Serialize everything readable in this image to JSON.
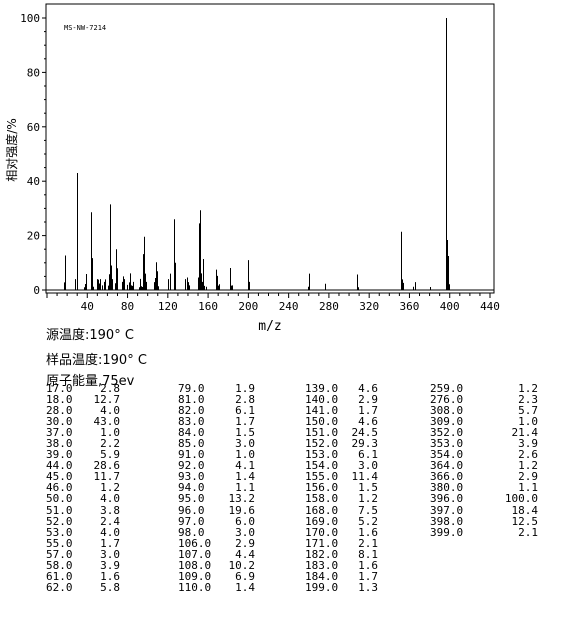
{
  "chart_data": {
    "type": "bar",
    "title": "",
    "annotation": "MS-NW-7214",
    "xlabel": "m/z",
    "ylabel": "相对强度/%",
    "xlim": [
      0,
      440
    ],
    "ylim": [
      0,
      100
    ],
    "x_ticks": [
      40,
      80,
      120,
      160,
      200,
      240,
      280,
      320,
      360,
      400,
      440
    ],
    "y_ticks": [
      0,
      20,
      40,
      60,
      80,
      100
    ],
    "peaks": [
      {
        "mz": 17.0,
        "ab": 2.8
      },
      {
        "mz": 18.0,
        "ab": 12.7
      },
      {
        "mz": 28.0,
        "ab": 4.0
      },
      {
        "mz": 30.0,
        "ab": 43.0
      },
      {
        "mz": 37.0,
        "ab": 1.0
      },
      {
        "mz": 38.0,
        "ab": 2.2
      },
      {
        "mz": 39.0,
        "ab": 5.9
      },
      {
        "mz": 44.0,
        "ab": 28.6
      },
      {
        "mz": 45.0,
        "ab": 11.7
      },
      {
        "mz": 46.0,
        "ab": 1.2
      },
      {
        "mz": 50.0,
        "ab": 4.0
      },
      {
        "mz": 51.0,
        "ab": 3.8
      },
      {
        "mz": 52.0,
        "ab": 2.4
      },
      {
        "mz": 53.0,
        "ab": 4.0
      },
      {
        "mz": 55.0,
        "ab": 1.7
      },
      {
        "mz": 57.0,
        "ab": 3.0
      },
      {
        "mz": 58.0,
        "ab": 3.9
      },
      {
        "mz": 61.0,
        "ab": 1.6
      },
      {
        "mz": 62.0,
        "ab": 5.8
      },
      {
        "mz": 63.0,
        "ab": 31.5
      },
      {
        "mz": 64.0,
        "ab": 9.0
      },
      {
        "mz": 65.0,
        "ab": 4.0
      },
      {
        "mz": 68.0,
        "ab": 2.5
      },
      {
        "mz": 69.0,
        "ab": 15.0
      },
      {
        "mz": 70.0,
        "ab": 8.0
      },
      {
        "mz": 74.0,
        "ab": 3.0
      },
      {
        "mz": 75.0,
        "ab": 5.0
      },
      {
        "mz": 76.0,
        "ab": 4.0
      },
      {
        "mz": 79.0,
        "ab": 1.9
      },
      {
        "mz": 81.0,
        "ab": 2.8
      },
      {
        "mz": 82.0,
        "ab": 6.1
      },
      {
        "mz": 83.0,
        "ab": 1.7
      },
      {
        "mz": 84.0,
        "ab": 1.5
      },
      {
        "mz": 85.0,
        "ab": 3.0
      },
      {
        "mz": 91.0,
        "ab": 1.0
      },
      {
        "mz": 92.0,
        "ab": 4.1
      },
      {
        "mz": 93.0,
        "ab": 1.4
      },
      {
        "mz": 94.0,
        "ab": 1.1
      },
      {
        "mz": 95.0,
        "ab": 13.2
      },
      {
        "mz": 96.0,
        "ab": 19.6
      },
      {
        "mz": 97.0,
        "ab": 6.0
      },
      {
        "mz": 98.0,
        "ab": 3.0
      },
      {
        "mz": 106.0,
        "ab": 2.9
      },
      {
        "mz": 107.0,
        "ab": 4.4
      },
      {
        "mz": 108.0,
        "ab": 10.2
      },
      {
        "mz": 109.0,
        "ab": 6.9
      },
      {
        "mz": 110.0,
        "ab": 1.4
      },
      {
        "mz": 120.0,
        "ab": 4.0
      },
      {
        "mz": 122.0,
        "ab": 6.0
      },
      {
        "mz": 126.0,
        "ab": 26.0
      },
      {
        "mz": 127.0,
        "ab": 10.0
      },
      {
        "mz": 137.0,
        "ab": 4.0
      },
      {
        "mz": 139.0,
        "ab": 4.6
      },
      {
        "mz": 140.0,
        "ab": 2.9
      },
      {
        "mz": 141.0,
        "ab": 1.7
      },
      {
        "mz": 150.0,
        "ab": 4.6
      },
      {
        "mz": 151.0,
        "ab": 24.5
      },
      {
        "mz": 152.0,
        "ab": 29.3
      },
      {
        "mz": 153.0,
        "ab": 6.1
      },
      {
        "mz": 154.0,
        "ab": 3.0
      },
      {
        "mz": 155.0,
        "ab": 11.4
      },
      {
        "mz": 156.0,
        "ab": 1.5
      },
      {
        "mz": 158.0,
        "ab": 1.2
      },
      {
        "mz": 168.0,
        "ab": 7.5
      },
      {
        "mz": 169.0,
        "ab": 5.2
      },
      {
        "mz": 170.0,
        "ab": 1.6
      },
      {
        "mz": 171.0,
        "ab": 2.1
      },
      {
        "mz": 182.0,
        "ab": 8.1
      },
      {
        "mz": 183.0,
        "ab": 1.6
      },
      {
        "mz": 184.0,
        "ab": 1.7
      },
      {
        "mz": 200.0,
        "ab": 11.0
      },
      {
        "mz": 201.0,
        "ab": 3.0
      },
      {
        "mz": 259.0,
        "ab": 1.2
      },
      {
        "mz": 260.0,
        "ab": 6.0
      },
      {
        "mz": 276.0,
        "ab": 2.3
      },
      {
        "mz": 308.0,
        "ab": 5.7
      },
      {
        "mz": 309.0,
        "ab": 1.0
      },
      {
        "mz": 352.0,
        "ab": 21.4
      },
      {
        "mz": 353.0,
        "ab": 3.9
      },
      {
        "mz": 354.0,
        "ab": 2.6
      },
      {
        "mz": 364.0,
        "ab": 1.2
      },
      {
        "mz": 366.0,
        "ab": 2.9
      },
      {
        "mz": 380.0,
        "ab": 1.1
      },
      {
        "mz": 396.0,
        "ab": 100.0
      },
      {
        "mz": 397.0,
        "ab": 18.4
      },
      {
        "mz": 398.0,
        "ab": 12.5
      },
      {
        "mz": 399.0,
        "ab": 2.1
      }
    ]
  },
  "conditions": {
    "source_temp": "源温度:190° C",
    "sample_temp": "样品温度:190° C",
    "ionization_energy": "原子能量,75ev"
  },
  "peak_table": {
    "columns": [
      [
        {
          "mz": "17.0",
          "ab": "2.8"
        },
        {
          "mz": "18.0",
          "ab": "12.7"
        },
        {
          "mz": "28.0",
          "ab": "4.0"
        },
        {
          "mz": "30.0",
          "ab": "43.0"
        },
        {
          "mz": "37.0",
          "ab": "1.0"
        },
        {
          "mz": "38.0",
          "ab": "2.2"
        },
        {
          "mz": "39.0",
          "ab": "5.9"
        },
        {
          "mz": "44.0",
          "ab": "28.6"
        },
        {
          "mz": "45.0",
          "ab": "11.7"
        },
        {
          "mz": "46.0",
          "ab": "1.2"
        },
        {
          "mz": "50.0",
          "ab": "4.0"
        },
        {
          "mz": "51.0",
          "ab": "3.8"
        },
        {
          "mz": "52.0",
          "ab": "2.4"
        },
        {
          "mz": "53.0",
          "ab": "4.0"
        },
        {
          "mz": "55.0",
          "ab": "1.7"
        },
        {
          "mz": "57.0",
          "ab": "3.0"
        },
        {
          "mz": "58.0",
          "ab": "3.9"
        },
        {
          "mz": "61.0",
          "ab": "1.6"
        },
        {
          "mz": "62.0",
          "ab": "5.8"
        }
      ],
      [
        {
          "mz": "79.0",
          "ab": "1.9"
        },
        {
          "mz": "81.0",
          "ab": "2.8"
        },
        {
          "mz": "82.0",
          "ab": "6.1"
        },
        {
          "mz": "83.0",
          "ab": "1.7"
        },
        {
          "mz": "84.0",
          "ab": "1.5"
        },
        {
          "mz": "85.0",
          "ab": "3.0"
        },
        {
          "mz": "91.0",
          "ab": "1.0"
        },
        {
          "mz": "92.0",
          "ab": "4.1"
        },
        {
          "mz": "93.0",
          "ab": "1.4"
        },
        {
          "mz": "94.0",
          "ab": "1.1"
        },
        {
          "mz": "95.0",
          "ab": "13.2"
        },
        {
          "mz": "96.0",
          "ab": "19.6"
        },
        {
          "mz": "97.0",
          "ab": "6.0"
        },
        {
          "mz": "98.0",
          "ab": "3.0"
        },
        {
          "mz": "106.0",
          "ab": "2.9"
        },
        {
          "mz": "107.0",
          "ab": "4.4"
        },
        {
          "mz": "108.0",
          "ab": "10.2"
        },
        {
          "mz": "109.0",
          "ab": "6.9"
        },
        {
          "mz": "110.0",
          "ab": "1.4"
        }
      ],
      [
        {
          "mz": "139.0",
          "ab": "4.6"
        },
        {
          "mz": "140.0",
          "ab": "2.9"
        },
        {
          "mz": "141.0",
          "ab": "1.7"
        },
        {
          "mz": "150.0",
          "ab": "4.6"
        },
        {
          "mz": "151.0",
          "ab": "24.5"
        },
        {
          "mz": "152.0",
          "ab": "29.3"
        },
        {
          "mz": "153.0",
          "ab": "6.1"
        },
        {
          "mz": "154.0",
          "ab": "3.0"
        },
        {
          "mz": "155.0",
          "ab": "11.4"
        },
        {
          "mz": "156.0",
          "ab": "1.5"
        },
        {
          "mz": "158.0",
          "ab": "1.2"
        },
        {
          "mz": "168.0",
          "ab": "7.5"
        },
        {
          "mz": "169.0",
          "ab": "5.2"
        },
        {
          "mz": "170.0",
          "ab": "1.6"
        },
        {
          "mz": "171.0",
          "ab": "2.1"
        },
        {
          "mz": "182.0",
          "ab": "8.1"
        },
        {
          "mz": "183.0",
          "ab": "1.6"
        },
        {
          "mz": "184.0",
          "ab": "1.7"
        },
        {
          "mz": "199.0",
          "ab": "1.3"
        }
      ],
      [
        {
          "mz": "259.0",
          "ab": "1.2"
        },
        {
          "mz": "276.0",
          "ab": "2.3"
        },
        {
          "mz": "308.0",
          "ab": "5.7"
        },
        {
          "mz": "309.0",
          "ab": "1.0"
        },
        {
          "mz": "352.0",
          "ab": "21.4"
        },
        {
          "mz": "353.0",
          "ab": "3.9"
        },
        {
          "mz": "354.0",
          "ab": "2.6"
        },
        {
          "mz": "364.0",
          "ab": "1.2"
        },
        {
          "mz": "366.0",
          "ab": "2.9"
        },
        {
          "mz": "380.0",
          "ab": "1.1"
        },
        {
          "mz": "396.0",
          "ab": "100.0"
        },
        {
          "mz": "397.0",
          "ab": "18.4"
        },
        {
          "mz": "398.0",
          "ab": "12.5"
        },
        {
          "mz": "399.0",
          "ab": "2.1"
        }
      ]
    ]
  }
}
